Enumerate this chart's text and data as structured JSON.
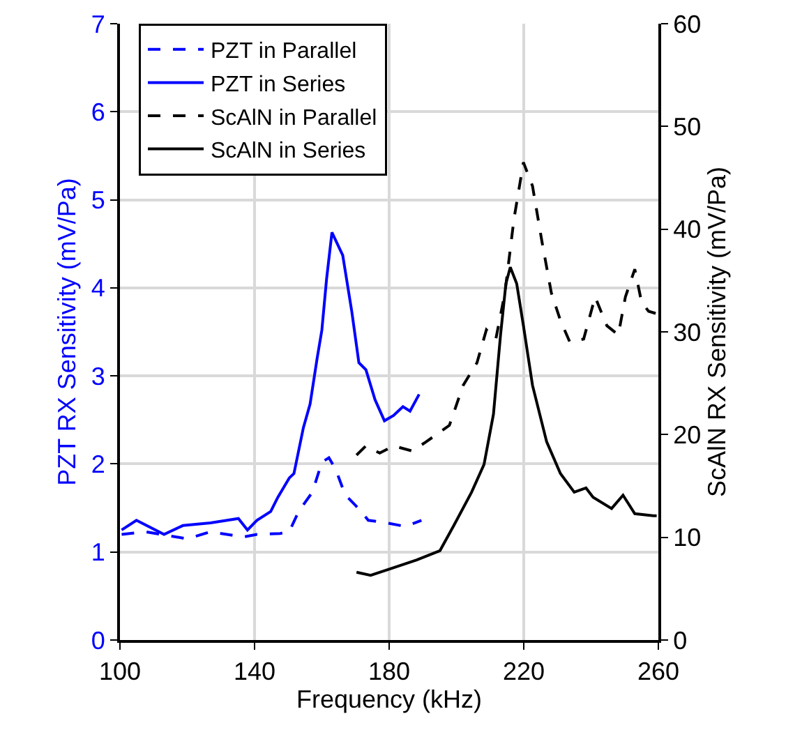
{
  "chart_data": {
    "type": "line",
    "xlabel": "Frequency (kHz)",
    "ylabel": "PZT RX Sensitivity (mV/Pa)",
    "y2label": "ScAlN RX Sensitivity (mV/Pa)",
    "xlim": [
      100,
      260
    ],
    "xticks": [
      100,
      140,
      180,
      220,
      260
    ],
    "ylim": [
      0,
      7
    ],
    "yticks": [
      0,
      1,
      2,
      3,
      4,
      5,
      6,
      7
    ],
    "y2lim": [
      0,
      60
    ],
    "y2ticks": [
      0,
      10,
      20,
      30,
      40,
      50,
      60
    ],
    "grid": true,
    "legend": "top left",
    "series": [
      {
        "name": "PZT in Parallel",
        "color": "#0000ff",
        "line_style": "dashed",
        "x": [
          100.5,
          107.6,
          120,
          126.9,
          136.6,
          140.7,
          147.6,
          150.3,
          153.1,
          157.2,
          160,
          162.1,
          164.1,
          166.9,
          171,
          173.8,
          179.3,
          184.8,
          189.6
        ],
        "values": [
          1.2,
          1.23,
          1.15,
          1.23,
          1.17,
          1.2,
          1.21,
          1.23,
          1.46,
          1.68,
          2.02,
          2.07,
          1.94,
          1.65,
          1.49,
          1.36,
          1.33,
          1.29,
          1.36
        ]
      },
      {
        "name": "PZT in Series",
        "color": "#0000ff",
        "line_style": "solid",
        "x": [
          100.5,
          104.9,
          113.1,
          118.7,
          126.9,
          135.2,
          137.9,
          140.7,
          144.8,
          146.9,
          150.3,
          151.7,
          154.5,
          156.5,
          158.6,
          160,
          161.4,
          163,
          166.2,
          168.9,
          171,
          173.1,
          175.8,
          178.6,
          181.3,
          184.1,
          186.2,
          188.9
        ],
        "values": [
          1.25,
          1.36,
          1.2,
          1.3,
          1.33,
          1.38,
          1.25,
          1.36,
          1.46,
          1.62,
          1.84,
          1.89,
          2.41,
          2.68,
          3.2,
          3.52,
          4.1,
          4.63,
          4.37,
          3.73,
          3.15,
          3.07,
          2.73,
          2.49,
          2.55,
          2.65,
          2.6,
          2.79
        ]
      },
      {
        "name": "ScAlN in Parallel",
        "color": "#000000",
        "line_style": "dashed",
        "axis": "y2",
        "x": [
          170.3,
          173.1,
          177.2,
          181.3,
          186.9,
          191,
          197.9,
          202,
          206.1,
          208.9,
          211.7,
          214.4,
          217.1,
          219.9,
          222.6,
          225.4,
          228.2,
          230.9,
          233.7,
          237.8,
          241.2,
          244.7,
          248.1,
          250.2,
          253,
          255,
          257.1,
          259.2
        ],
        "values": [
          18,
          18.9,
          18.2,
          18.9,
          18.4,
          19.3,
          20.9,
          24.8,
          27,
          30.2,
          29.3,
          33.8,
          41,
          46.5,
          44.2,
          38.8,
          33.8,
          31.1,
          29,
          29.3,
          33.4,
          30.6,
          29.7,
          33.4,
          36.1,
          32.9,
          32,
          31.8
        ]
      },
      {
        "name": "ScAlN in Series",
        "color": "#000000",
        "line_style": "solid",
        "axis": "y2",
        "x": [
          170.3,
          174.5,
          180,
          188.2,
          195.1,
          199.3,
          204.5,
          208.2,
          211,
          213.1,
          214.7,
          216,
          217.9,
          219.9,
          222.6,
          226.8,
          230.9,
          235,
          238.5,
          240.6,
          246.1,
          249.5,
          253,
          258.5,
          259.5
        ],
        "values": [
          6.6,
          6.3,
          6.9,
          7.8,
          8.7,
          11.2,
          14.4,
          17.1,
          22,
          29.7,
          34.7,
          36.3,
          34.7,
          30.6,
          24.8,
          19.3,
          16.2,
          14.4,
          14.8,
          13.9,
          12.8,
          14.1,
          12.3,
          12.1,
          12.1
        ]
      }
    ]
  }
}
